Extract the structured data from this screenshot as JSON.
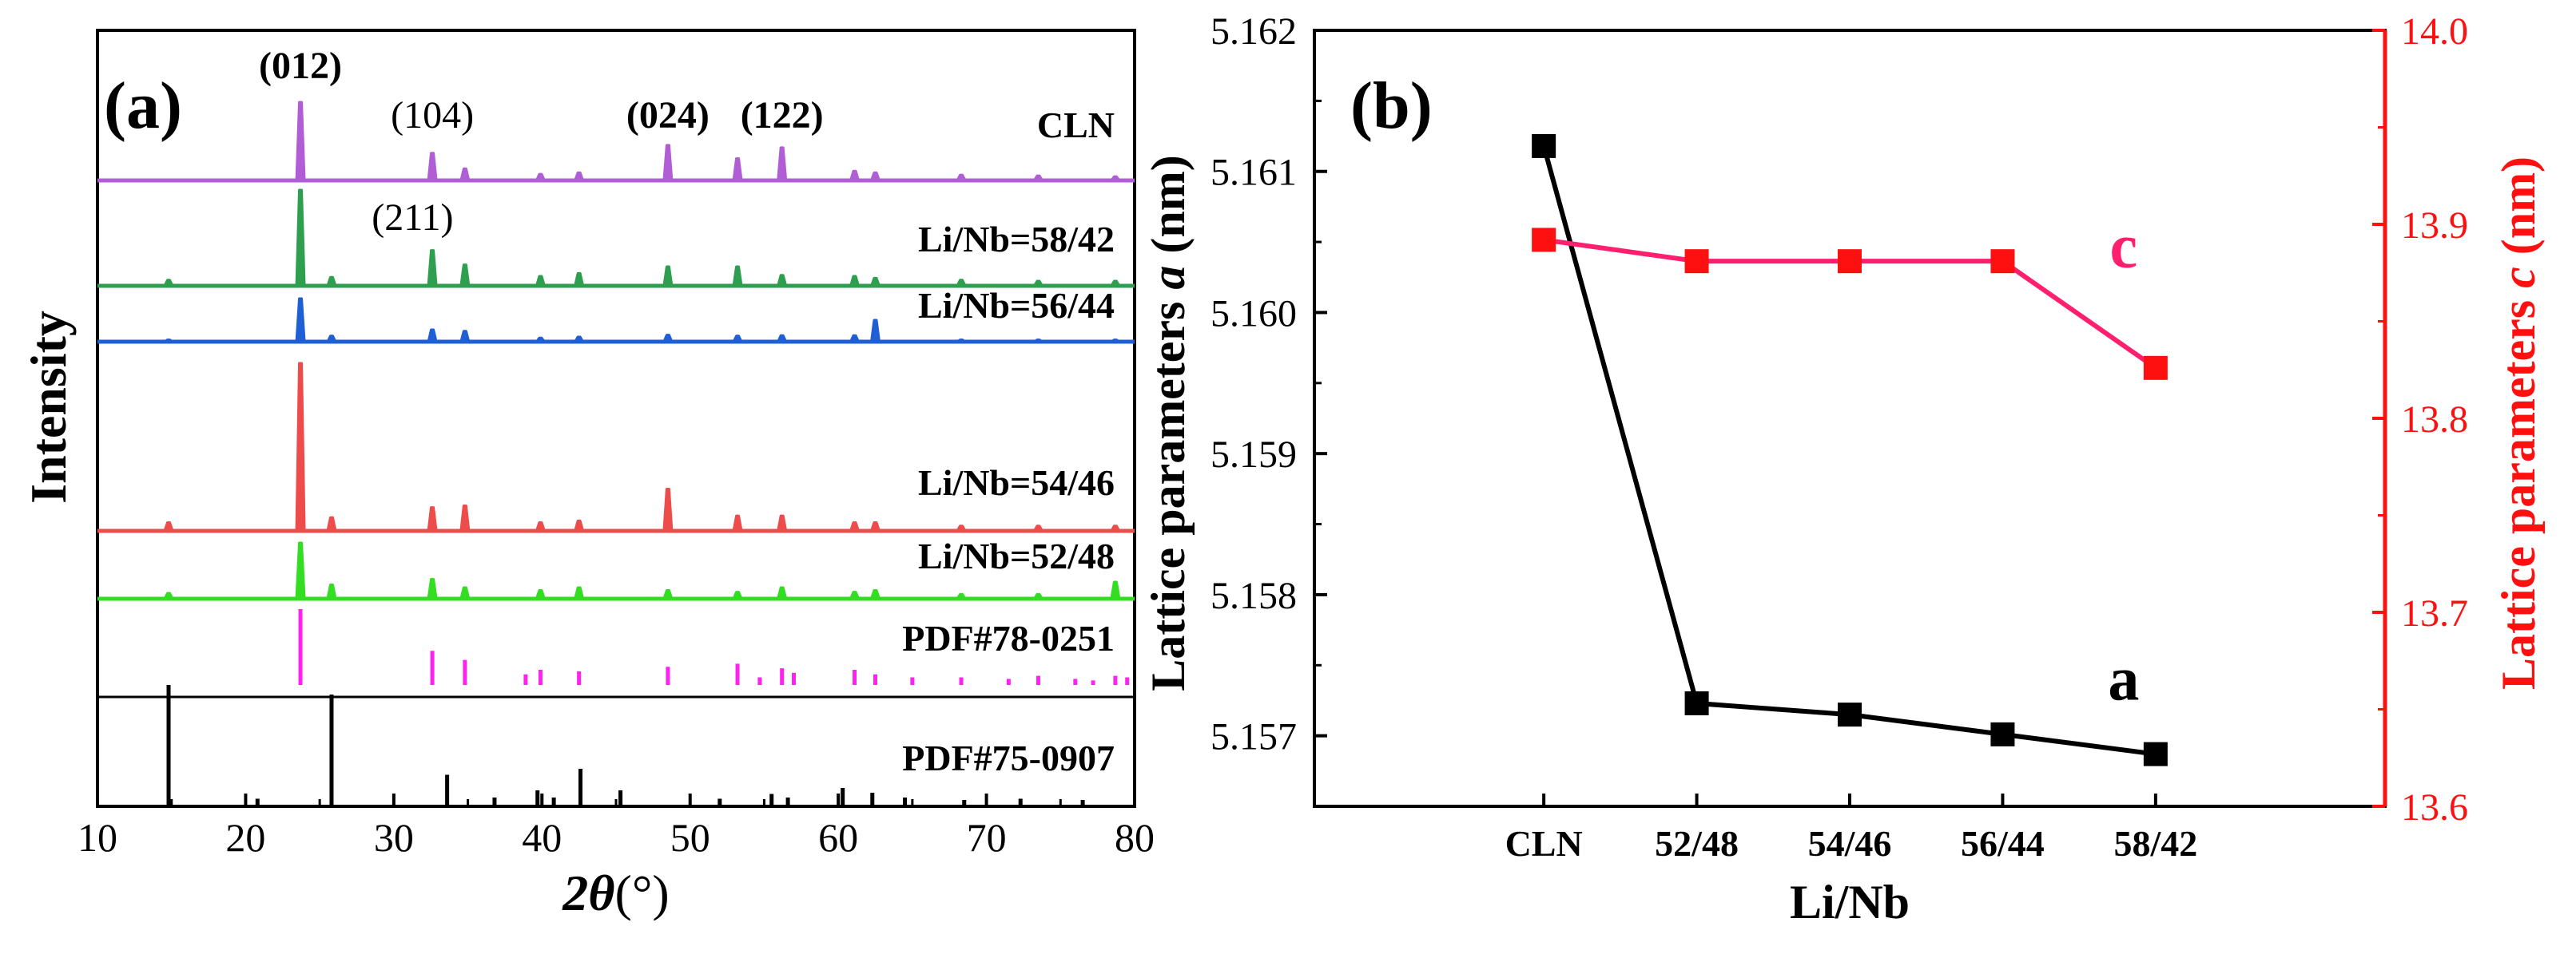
{
  "chart_data": [
    {
      "type": "line",
      "panel_label": "(a)",
      "title": "",
      "xlabel_symbol": "2θ",
      "xlabel_unit": "(°)",
      "ylabel": "Intensity",
      "xlim": [
        10,
        80
      ],
      "xticks": [
        "10",
        "20",
        "30",
        "40",
        "50",
        "60",
        "70",
        "80"
      ],
      "peak_labels": [
        {
          "text": "(012)",
          "x": 23.7,
          "bold": true
        },
        {
          "text": "(104)",
          "x": 32.6,
          "bold": false
        },
        {
          "text": "(024)",
          "x": 48.5,
          "bold": true
        },
        {
          "text": "(122)",
          "x": 56.2,
          "bold": true
        },
        {
          "text": "(211)",
          "x": 28.3,
          "bold": false
        }
      ],
      "series": [
        {
          "name": "CLN",
          "color": "#b05dd6",
          "peaks": [
            [
              23.7,
              1.0
            ],
            [
              32.6,
              0.35
            ],
            [
              34.8,
              0.15
            ],
            [
              39.9,
              0.08
            ],
            [
              42.5,
              0.1
            ],
            [
              48.5,
              0.45
            ],
            [
              53.2,
              0.28
            ],
            [
              56.2,
              0.42
            ],
            [
              61.1,
              0.12
            ],
            [
              62.5,
              0.1
            ],
            [
              68.3,
              0.07
            ],
            [
              73.5,
              0.06
            ],
            [
              78.7,
              0.05
            ]
          ]
        },
        {
          "name": "Li/Nb=58/42",
          "color": "#2e9e4f",
          "peaks": [
            [
              14.8,
              0.06
            ],
            [
              23.7,
              1.0
            ],
            [
              25.8,
              0.09
            ],
            [
              32.6,
              0.37
            ],
            [
              34.8,
              0.22
            ],
            [
              39.9,
              0.1
            ],
            [
              42.5,
              0.13
            ],
            [
              48.5,
              0.2
            ],
            [
              53.2,
              0.2
            ],
            [
              56.2,
              0.11
            ],
            [
              61.1,
              0.1
            ],
            [
              62.5,
              0.08
            ],
            [
              68.3,
              0.06
            ],
            [
              73.5,
              0.05
            ],
            [
              78.7,
              0.05
            ]
          ]
        },
        {
          "name": "Li/Nb=56/44",
          "color": "#1f5fd6",
          "peaks": [
            [
              14.8,
              0.04
            ],
            [
              23.7,
              0.9
            ],
            [
              25.8,
              0.12
            ],
            [
              32.6,
              0.25
            ],
            [
              34.8,
              0.22
            ],
            [
              39.9,
              0.08
            ],
            [
              42.5,
              0.1
            ],
            [
              48.5,
              0.14
            ],
            [
              53.2,
              0.12
            ],
            [
              56.2,
              0.13
            ],
            [
              61.1,
              0.13
            ],
            [
              62.5,
              0.45
            ],
            [
              68.3,
              0.04
            ],
            [
              73.5,
              0.04
            ],
            [
              78.7,
              0.04
            ]
          ]
        },
        {
          "name": "Li/Nb=54/46",
          "color": "#ee4b4b",
          "peaks": [
            [
              14.8,
              0.05
            ],
            [
              23.7,
              1.0
            ],
            [
              25.8,
              0.08
            ],
            [
              32.6,
              0.14
            ],
            [
              34.8,
              0.15
            ],
            [
              39.9,
              0.05
            ],
            [
              42.5,
              0.06
            ],
            [
              48.5,
              0.25
            ],
            [
              53.2,
              0.09
            ],
            [
              56.2,
              0.09
            ],
            [
              61.1,
              0.05
            ],
            [
              62.5,
              0.05
            ],
            [
              68.3,
              0.03
            ],
            [
              73.5,
              0.03
            ],
            [
              78.7,
              0.03
            ]
          ]
        },
        {
          "name": "Li/Nb=52/48",
          "color": "#33dd22",
          "peaks": [
            [
              14.8,
              0.1
            ],
            [
              23.7,
              1.0
            ],
            [
              25.8,
              0.25
            ],
            [
              32.6,
              0.35
            ],
            [
              34.8,
              0.2
            ],
            [
              39.9,
              0.15
            ],
            [
              42.5,
              0.2
            ],
            [
              48.5,
              0.15
            ],
            [
              53.2,
              0.12
            ],
            [
              56.2,
              0.2
            ],
            [
              61.1,
              0.12
            ],
            [
              62.5,
              0.15
            ],
            [
              68.3,
              0.08
            ],
            [
              73.5,
              0.08
            ],
            [
              78.7,
              0.3
            ]
          ]
        },
        {
          "name": "PDF#78-0251",
          "color": "#ff22ee",
          "stick": true,
          "peaks": [
            [
              23.7,
              1.0
            ],
            [
              32.6,
              0.45
            ],
            [
              34.8,
              0.33
            ],
            [
              38.9,
              0.14
            ],
            [
              39.9,
              0.2
            ],
            [
              42.5,
              0.18
            ],
            [
              48.5,
              0.24
            ],
            [
              53.2,
              0.28
            ],
            [
              54.7,
              0.1
            ],
            [
              56.2,
              0.22
            ],
            [
              57.0,
              0.16
            ],
            [
              61.1,
              0.2
            ],
            [
              62.5,
              0.14
            ],
            [
              65.0,
              0.1
            ],
            [
              68.3,
              0.1
            ],
            [
              71.5,
              0.08
            ],
            [
              73.5,
              0.12
            ],
            [
              76.0,
              0.08
            ],
            [
              77.2,
              0.06
            ],
            [
              78.7,
              0.12
            ],
            [
              79.5,
              0.1
            ]
          ]
        },
        {
          "name": "PDF#75-0907",
          "color": "#000000",
          "stick": true,
          "peaks": [
            [
              14.8,
              1.0
            ],
            [
              20.8,
              0.05
            ],
            [
              25.8,
              0.92
            ],
            [
              33.6,
              0.25
            ],
            [
              36.8,
              0.06
            ],
            [
              39.7,
              0.12
            ],
            [
              40.8,
              0.06
            ],
            [
              42.6,
              0.3
            ],
            [
              45.3,
              0.12
            ],
            [
              52.0,
              0.05
            ],
            [
              55.5,
              0.09
            ],
            [
              56.6,
              0.06
            ],
            [
              60.3,
              0.14
            ],
            [
              62.3,
              0.1
            ],
            [
              64.5,
              0.06
            ],
            [
              68.5,
              0.04
            ],
            [
              72.3,
              0.05
            ],
            [
              76.5,
              0.04
            ]
          ]
        }
      ]
    },
    {
      "type": "line",
      "panel_label": "(b)",
      "title": "",
      "xlabel": "Li/Nb",
      "categories": [
        "CLN",
        "52/48",
        "54/46",
        "56/44",
        "58/42"
      ],
      "ylabel_left_prefix": "Lattice parameters ",
      "ylabel_left_var": "a",
      "ylabel_left_unit": " (nm)",
      "ylabel_right_prefix": "Lattice parameters ",
      "ylabel_right_var": "c",
      "ylabel_right_unit": " (nm)",
      "ylim_left": [
        5.1565,
        5.162
      ],
      "yticks_left": [
        "5.157",
        "5.158",
        "5.159",
        "5.160",
        "5.161",
        "5.162"
      ],
      "ylim_right": [
        13.6,
        14.0
      ],
      "yticks_right": [
        "13.6",
        "13.7",
        "13.8",
        "13.9",
        "14.0"
      ],
      "series": [
        {
          "name": "a",
          "axis": "left",
          "color": "#000000",
          "marker": "square",
          "values": [
            5.16118,
            5.15723,
            5.15715,
            5.15701,
            5.15687
          ]
        },
        {
          "name": "c",
          "axis": "right",
          "color": "#ff1f6e",
          "marker_color": "#ff1010",
          "marker": "square",
          "values": [
            13.892,
            13.881,
            13.881,
            13.881,
            13.826
          ]
        }
      ]
    }
  ]
}
